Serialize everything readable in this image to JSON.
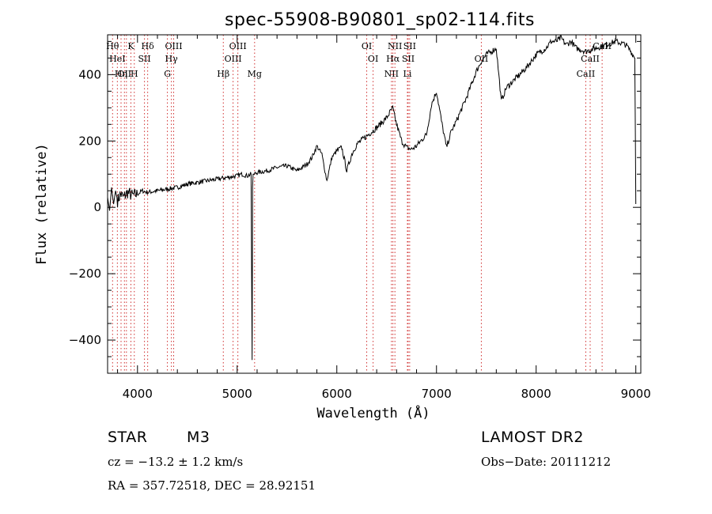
{
  "chart_data": {
    "type": "line",
    "title": "spec-55908-B90801_sp02-114.fits",
    "xlabel": "Wavelength (Å)",
    "ylabel": "Flux (relative)",
    "xlim": [
      3700,
      9050
    ],
    "ylim": [
      -500,
      520
    ],
    "xticks": [
      4000,
      5000,
      6000,
      7000,
      8000,
      9000
    ],
    "yticks": [
      -400,
      -200,
      0,
      200,
      400
    ],
    "grid": false,
    "series": [
      {
        "x": [
          3700,
          3720,
          3740,
          3760,
          3780,
          3800,
          3830,
          3860,
          3900,
          3950,
          4000,
          4050,
          4100,
          4200,
          4300,
          4400,
          4500,
          4600,
          4700,
          4800,
          4900,
          5000,
          5050,
          5100,
          5140,
          5150,
          5155,
          5160,
          5170,
          5200,
          5300,
          5400,
          5500,
          5600,
          5700,
          5750,
          5800,
          5850,
          5900,
          5950,
          6000,
          6050,
          6100,
          6150,
          6200,
          6300,
          6400,
          6500,
          6560,
          6600,
          6650,
          6700,
          6750,
          6800,
          6900,
          6950,
          7000,
          7050,
          7100,
          7150,
          7200,
          7300,
          7400,
          7450,
          7500,
          7550,
          7600,
          7650,
          7700,
          7800,
          7900,
          8000,
          8100,
          8150,
          8200,
          8250,
          8300,
          8350,
          8400,
          8500,
          8600,
          8700,
          8800,
          8900,
          8950,
          8990,
          9000
        ],
        "y": [
          30,
          -10,
          60,
          10,
          50,
          20,
          40,
          30,
          45,
          35,
          40,
          50,
          45,
          50,
          55,
          60,
          70,
          75,
          80,
          85,
          90,
          95,
          100,
          95,
          100,
          -460,
          60,
          100,
          100,
          105,
          110,
          120,
          125,
          110,
          130,
          150,
          185,
          160,
          80,
          150,
          170,
          180,
          110,
          160,
          190,
          215,
          240,
          270,
          300,
          250,
          200,
          180,
          175,
          185,
          220,
          310,
          350,
          260,
          180,
          230,
          260,
          330,
          410,
          440,
          460,
          470,
          480,
          320,
          360,
          390,
          420,
          460,
          480,
          500,
          500,
          510,
          490,
          500,
          480,
          470,
          480,
          490,
          500,
          490,
          470,
          450,
          10
        ]
      }
    ],
    "lines": [
      {
        "x": 3750,
        "label": "Hθ",
        "row": 1
      },
      {
        "x": 3798,
        "label": "HeI",
        "row": 2
      },
      {
        "x": 3835,
        "label": "Hη",
        "row": 3
      },
      {
        "x": 3869,
        "label": "OII",
        "row": 3
      },
      {
        "x": 3889,
        "label": "",
        "row": 0
      },
      {
        "x": 3934,
        "label": "K",
        "row": 1
      },
      {
        "x": 3968,
        "label": "H",
        "row": 3
      },
      {
        "x": 4070,
        "label": "SII",
        "row": 2
      },
      {
        "x": 4102,
        "label": "Hδ",
        "row": 1
      },
      {
        "x": 4300,
        "label": "G",
        "row": 3
      },
      {
        "x": 4340,
        "label": "Hγ",
        "row": 2
      },
      {
        "x": 4363,
        "label": "OIII",
        "row": 1
      },
      {
        "x": 4861,
        "label": "Hβ",
        "row": 3
      },
      {
        "x": 4959,
        "label": "OIII",
        "row": 2
      },
      {
        "x": 5007,
        "label": "OIII",
        "row": 1
      },
      {
        "x": 5175,
        "label": "Mg",
        "row": 3
      },
      {
        "x": 6300,
        "label": "OI",
        "row": 1
      },
      {
        "x": 6364,
        "label": "OI",
        "row": 2
      },
      {
        "x": 6548,
        "label": "NII",
        "row": 3
      },
      {
        "x": 6563,
        "label": "Hα",
        "row": 2
      },
      {
        "x": 6583,
        "label": "NII",
        "row": 1
      },
      {
        "x": 6716,
        "label": "SII",
        "row": 2
      },
      {
        "x": 6731,
        "label": "SII",
        "row": 1
      },
      {
        "x": 6708,
        "label": "Li",
        "row": 3
      },
      {
        "x": 7450,
        "label": "OII",
        "row": 2
      },
      {
        "x": 8498,
        "label": "CaII",
        "row": 3
      },
      {
        "x": 8542,
        "label": "CaII",
        "row": 2
      },
      {
        "x": 8662,
        "label": "CaII",
        "row": 1
      }
    ]
  },
  "info": {
    "object_class": "STAR",
    "subclass": "M3",
    "survey": "LAMOST DR2",
    "cz": "cz = −13.2 ± 1.2 km/s",
    "obs_date": "Obs−Date: 20111212",
    "coords": "RA = 357.72518, DEC =  28.92151"
  }
}
